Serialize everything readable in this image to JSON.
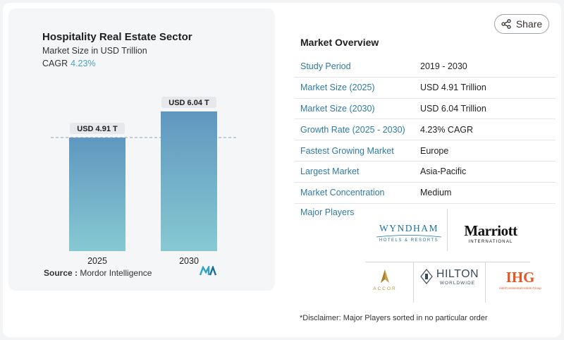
{
  "chart": {
    "title": "Hospitality Real Estate Sector",
    "subtitle": "Market Size in USD Trillion",
    "cagr_label": "CAGR",
    "cagr_value": "4.23%",
    "source_label": "Source :",
    "source_value": "Mordor Intelligence"
  },
  "chart_data": {
    "type": "bar",
    "categories": [
      "2025",
      "2030"
    ],
    "values": [
      4.91,
      6.04
    ],
    "data_labels": [
      "USD 4.91 T",
      "USD 6.04 T"
    ],
    "title": "Hospitality Real Estate Sector",
    "xlabel": "",
    "ylabel": "",
    "ylim": [
      0,
      6.04
    ],
    "grid": false,
    "reference_line": "dashed line at 2025 value"
  },
  "share": {
    "label": "Share",
    "icon": "share-icon"
  },
  "overview": {
    "title": "Market Overview",
    "rows": [
      {
        "key": "Study Period",
        "value": "2019 - 2030"
      },
      {
        "key": "Market Size (2025)",
        "value": "USD 4.91 Trillion"
      },
      {
        "key": "Market Size (2030)",
        "value": "USD 6.04 Trillion"
      },
      {
        "key": "Growth Rate (2025 - 2030)",
        "value": "4.23% CAGR"
      },
      {
        "key": "Fastest Growing Market",
        "value": "Europe"
      },
      {
        "key": "Largest Market",
        "value": "Asia-Pacific"
      },
      {
        "key": "Market Concentration",
        "value": "Medium"
      }
    ]
  },
  "players": {
    "label": "Major Players",
    "logos": {
      "wyndham": {
        "name": "WYNDHAM",
        "sub": "HOTELS & RESORTS"
      },
      "marriott": {
        "name": "Marriott",
        "sub": "INTERNATIONAL"
      },
      "accor": {
        "name": "ACCOR"
      },
      "hilton": {
        "name": "HILTON",
        "sub": "WORLDWIDE"
      },
      "ihg": {
        "name": "IHG",
        "sub": "InterContinental Hotels Group"
      }
    }
  },
  "disclaimer": "*Disclaimer: Major Players sorted in no particular order",
  "colors": {
    "bar_top": "#5f97bf",
    "bar_bottom": "#86c9d2",
    "accent": "#2f7aa0",
    "cagr": "#4aa3c2"
  }
}
